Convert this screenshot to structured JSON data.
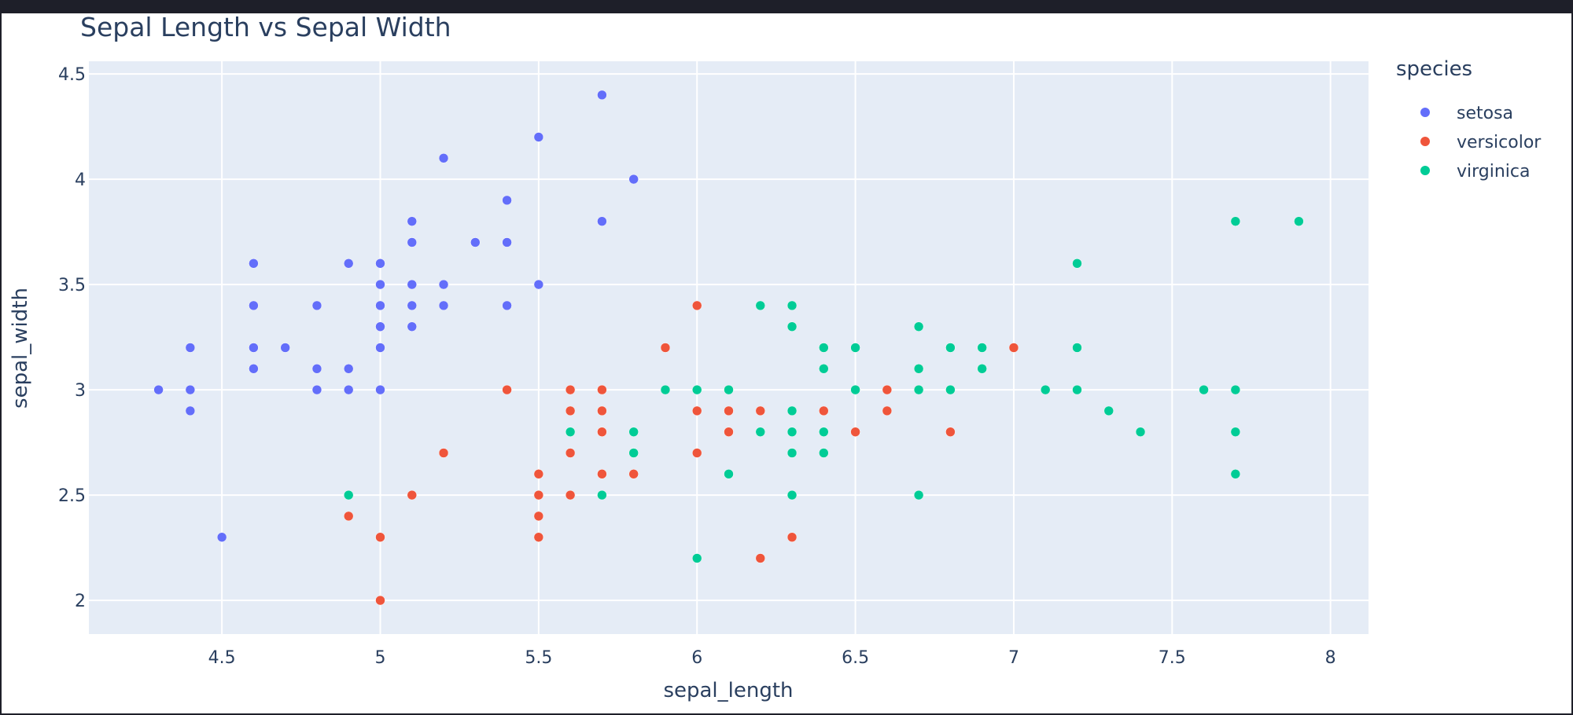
{
  "chart_data": {
    "type": "scatter",
    "title": "Sepal Length vs Sepal Width",
    "xlabel": "sepal_length",
    "ylabel": "sepal_width",
    "xlim": [
      4.08,
      8.12
    ],
    "ylim": [
      1.84,
      4.56
    ],
    "x_ticks": [
      "4.5",
      "5",
      "5.5",
      "6",
      "6.5",
      "7",
      "7.5",
      "8"
    ],
    "y_ticks": [
      "2",
      "2.5",
      "3",
      "3.5",
      "4",
      "4.5"
    ],
    "grid": true,
    "legend_title": "species",
    "legend_position": "right",
    "series": [
      {
        "name": "setosa",
        "color": "#636efa",
        "points": [
          [
            5.1,
            3.5
          ],
          [
            4.9,
            3.0
          ],
          [
            4.7,
            3.2
          ],
          [
            4.6,
            3.1
          ],
          [
            5.0,
            3.6
          ],
          [
            5.4,
            3.9
          ],
          [
            4.6,
            3.4
          ],
          [
            5.0,
            3.4
          ],
          [
            4.4,
            2.9
          ],
          [
            4.9,
            3.1
          ],
          [
            5.4,
            3.7
          ],
          [
            4.8,
            3.4
          ],
          [
            4.8,
            3.0
          ],
          [
            4.3,
            3.0
          ],
          [
            5.8,
            4.0
          ],
          [
            5.7,
            4.4
          ],
          [
            5.4,
            3.9
          ],
          [
            5.1,
            3.5
          ],
          [
            5.7,
            3.8
          ],
          [
            5.1,
            3.8
          ],
          [
            5.4,
            3.4
          ],
          [
            5.1,
            3.7
          ],
          [
            4.6,
            3.6
          ],
          [
            5.1,
            3.3
          ],
          [
            4.8,
            3.4
          ],
          [
            5.0,
            3.0
          ],
          [
            5.0,
            3.4
          ],
          [
            5.2,
            3.5
          ],
          [
            5.2,
            3.4
          ],
          [
            4.7,
            3.2
          ],
          [
            4.8,
            3.1
          ],
          [
            5.4,
            3.4
          ],
          [
            5.2,
            4.1
          ],
          [
            5.5,
            4.2
          ],
          [
            4.9,
            3.1
          ],
          [
            5.0,
            3.2
          ],
          [
            5.5,
            3.5
          ],
          [
            4.9,
            3.6
          ],
          [
            4.4,
            3.0
          ],
          [
            5.1,
            3.4
          ],
          [
            5.0,
            3.5
          ],
          [
            4.5,
            2.3
          ],
          [
            4.4,
            3.2
          ],
          [
            5.0,
            3.5
          ],
          [
            5.1,
            3.8
          ],
          [
            4.8,
            3.0
          ],
          [
            5.1,
            3.8
          ],
          [
            4.6,
            3.2
          ],
          [
            5.3,
            3.7
          ],
          [
            5.0,
            3.3
          ]
        ]
      },
      {
        "name": "versicolor",
        "color": "#ef553b",
        "points": [
          [
            7.0,
            3.2
          ],
          [
            6.4,
            3.2
          ],
          [
            6.9,
            3.1
          ],
          [
            5.5,
            2.3
          ],
          [
            6.5,
            2.8
          ],
          [
            5.7,
            2.8
          ],
          [
            6.3,
            3.3
          ],
          [
            4.9,
            2.4
          ],
          [
            6.6,
            2.9
          ],
          [
            5.2,
            2.7
          ],
          [
            5.0,
            2.0
          ],
          [
            5.9,
            3.0
          ],
          [
            6.0,
            2.2
          ],
          [
            6.1,
            2.9
          ],
          [
            5.6,
            2.9
          ],
          [
            6.7,
            3.1
          ],
          [
            5.6,
            3.0
          ],
          [
            5.8,
            2.7
          ],
          [
            6.2,
            2.2
          ],
          [
            5.6,
            2.5
          ],
          [
            5.9,
            3.2
          ],
          [
            6.1,
            2.8
          ],
          [
            6.3,
            2.5
          ],
          [
            6.1,
            2.8
          ],
          [
            6.4,
            2.9
          ],
          [
            6.6,
            3.0
          ],
          [
            6.8,
            2.8
          ],
          [
            6.7,
            3.0
          ],
          [
            6.0,
            2.9
          ],
          [
            5.7,
            2.6
          ],
          [
            5.5,
            2.4
          ],
          [
            5.5,
            2.4
          ],
          [
            5.8,
            2.7
          ],
          [
            6.0,
            2.7
          ],
          [
            5.4,
            3.0
          ],
          [
            6.0,
            3.4
          ],
          [
            6.7,
            3.1
          ],
          [
            6.3,
            2.3
          ],
          [
            5.6,
            3.0
          ],
          [
            5.5,
            2.5
          ],
          [
            5.5,
            2.6
          ],
          [
            6.1,
            3.0
          ],
          [
            5.8,
            2.6
          ],
          [
            5.0,
            2.3
          ],
          [
            5.6,
            2.7
          ],
          [
            5.7,
            3.0
          ],
          [
            5.7,
            2.9
          ],
          [
            6.2,
            2.9
          ],
          [
            5.1,
            2.5
          ],
          [
            5.7,
            2.8
          ]
        ]
      },
      {
        "name": "virginica",
        "color": "#00cc96",
        "points": [
          [
            6.3,
            3.3
          ],
          [
            5.8,
            2.7
          ],
          [
            7.1,
            3.0
          ],
          [
            6.3,
            2.9
          ],
          [
            6.5,
            3.0
          ],
          [
            7.6,
            3.0
          ],
          [
            4.9,
            2.5
          ],
          [
            7.3,
            2.9
          ],
          [
            6.7,
            2.5
          ],
          [
            7.2,
            3.6
          ],
          [
            6.5,
            3.2
          ],
          [
            6.4,
            2.7
          ],
          [
            6.8,
            3.0
          ],
          [
            5.7,
            2.5
          ],
          [
            5.8,
            2.8
          ],
          [
            6.4,
            3.2
          ],
          [
            6.5,
            3.0
          ],
          [
            7.7,
            3.8
          ],
          [
            7.7,
            2.6
          ],
          [
            6.0,
            2.2
          ],
          [
            6.9,
            3.2
          ],
          [
            5.6,
            2.8
          ],
          [
            7.7,
            2.8
          ],
          [
            6.3,
            2.7
          ],
          [
            6.7,
            3.3
          ],
          [
            7.2,
            3.2
          ],
          [
            6.2,
            2.8
          ],
          [
            6.1,
            3.0
          ],
          [
            6.4,
            2.8
          ],
          [
            7.2,
            3.0
          ],
          [
            7.4,
            2.8
          ],
          [
            7.9,
            3.8
          ],
          [
            6.4,
            2.8
          ],
          [
            6.3,
            2.8
          ],
          [
            6.1,
            2.6
          ],
          [
            7.7,
            3.0
          ],
          [
            6.3,
            3.4
          ],
          [
            6.4,
            3.1
          ],
          [
            6.0,
            3.0
          ],
          [
            6.9,
            3.1
          ],
          [
            6.7,
            3.1
          ],
          [
            6.9,
            3.1
          ],
          [
            5.8,
            2.7
          ],
          [
            6.8,
            3.2
          ],
          [
            6.7,
            3.3
          ],
          [
            6.7,
            3.0
          ],
          [
            6.3,
            2.5
          ],
          [
            6.5,
            3.0
          ],
          [
            6.2,
            3.4
          ],
          [
            5.9,
            3.0
          ]
        ]
      }
    ]
  }
}
